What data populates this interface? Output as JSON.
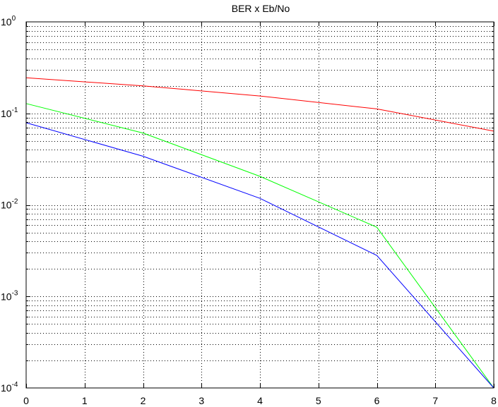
{
  "chart_data": {
    "type": "line",
    "title": "BER x Eb/No",
    "xlabel": "",
    "ylabel": "",
    "xlim": [
      0,
      8
    ],
    "ylim": [
      0.0001,
      1
    ],
    "yscale": "log",
    "grid": true,
    "x_ticks": [
      0,
      1,
      2,
      3,
      4,
      5,
      6,
      7,
      8
    ],
    "y_ticks": [
      {
        "value": 1,
        "base": "10",
        "exp": "0"
      },
      {
        "value": 0.1,
        "base": "10",
        "exp": "-1"
      },
      {
        "value": 0.01,
        "base": "10",
        "exp": "-2"
      },
      {
        "value": 0.001,
        "base": "10",
        "exp": "-3"
      },
      {
        "value": 0.0001,
        "base": "10",
        "exp": "-4"
      }
    ],
    "series": [
      {
        "color": "#ff0000",
        "x": [
          0,
          2,
          4,
          6,
          8
        ],
        "y": [
          0.245,
          0.2,
          0.155,
          0.112,
          0.064
        ]
      },
      {
        "color": "#00ff00",
        "x": [
          0,
          2,
          4,
          6,
          8
        ],
        "y": [
          0.128,
          0.061,
          0.0205,
          0.0057,
          0.0001
        ]
      },
      {
        "color": "#0000ff",
        "x": [
          0,
          2,
          4,
          6,
          8
        ],
        "y": [
          0.079,
          0.034,
          0.0118,
          0.0028,
          0.0001
        ]
      }
    ]
  }
}
